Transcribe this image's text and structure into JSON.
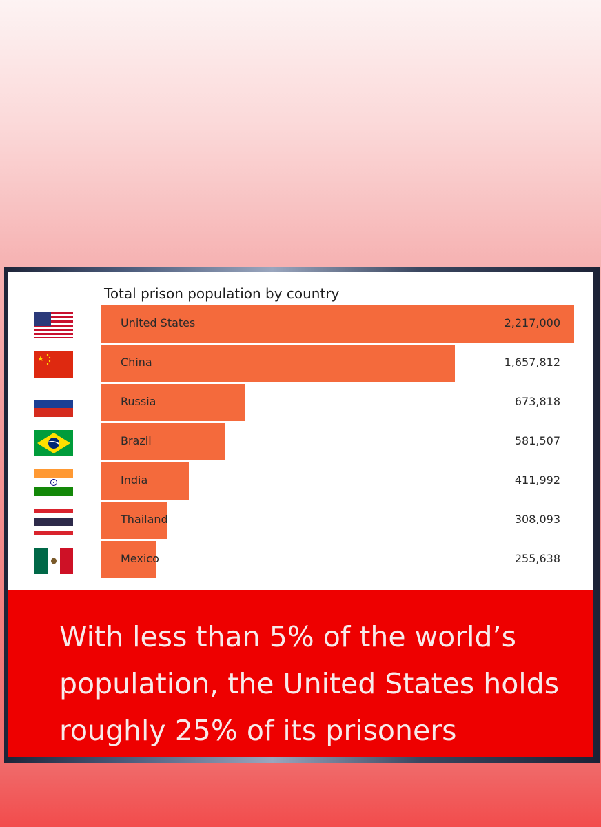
{
  "chart_data": {
    "type": "bar",
    "orientation": "horizontal",
    "title": "Total prison population by country",
    "categories": [
      "United States",
      "China",
      "Russia",
      "Brazil",
      "India",
      "Thailand",
      "Mexico"
    ],
    "values": [
      2217000,
      1657812,
      673818,
      581507,
      411992,
      308093,
      255638
    ],
    "value_labels": [
      "2,217,000",
      "1,657,812",
      "673,818",
      "581,507",
      "411,992",
      "308,093",
      "255,638"
    ],
    "flag_icons": [
      "usa-flag-icon",
      "china-flag-icon",
      "russia-flag-icon",
      "brazil-flag-icon",
      "india-flag-icon",
      "thailand-flag-icon",
      "mexico-flag-icon"
    ],
    "bar_color": "#f46a3c",
    "xlim": [
      0,
      2217000
    ],
    "grid": false,
    "legend": "none"
  },
  "caption": {
    "text": "With less than 5% of the world’s population, the United States holds roughly 25% of its prisoners",
    "background": "#ee0000"
  }
}
